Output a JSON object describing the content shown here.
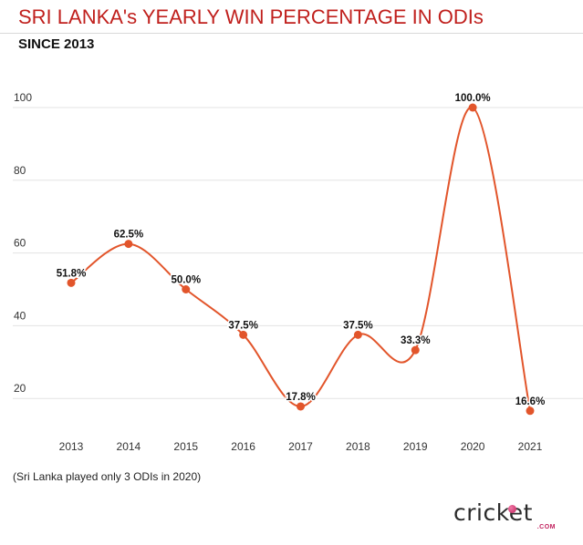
{
  "header": {
    "title": "SRI LANKA's YEARLY WIN PERCENTAGE IN ODIs",
    "subtitle": "SINCE 2013"
  },
  "footnote": "(Sri Lanka played only 3 ODIs in 2020)",
  "logo": {
    "text": "cricket",
    "suffix": ".COM"
  },
  "colors": {
    "title": "#c0201d",
    "line": "#e2552b",
    "point": "#e2552b",
    "grid": "#e3e3e3",
    "logo_accent": "#c11f5c"
  },
  "chart_data": {
    "type": "line",
    "categories": [
      "2013",
      "2014",
      "2015",
      "2016",
      "2017",
      "2018",
      "2019",
      "2020",
      "2021"
    ],
    "series": [
      {
        "values": [
          51.8,
          62.5,
          50.0,
          37.5,
          17.8,
          37.5,
          33.3,
          100.0,
          16.6
        ],
        "labels": [
          "51.8%",
          "62.5%",
          "50.0%",
          "37.5%",
          "17.8%",
          "37.5%",
          "33.3%",
          "100.0%",
          "16.6%"
        ]
      }
    ],
    "yticks": [
      20,
      40,
      60,
      80,
      100
    ],
    "ylim": [
      10,
      104
    ],
    "grid": true,
    "smooth": true,
    "legend": "none"
  }
}
